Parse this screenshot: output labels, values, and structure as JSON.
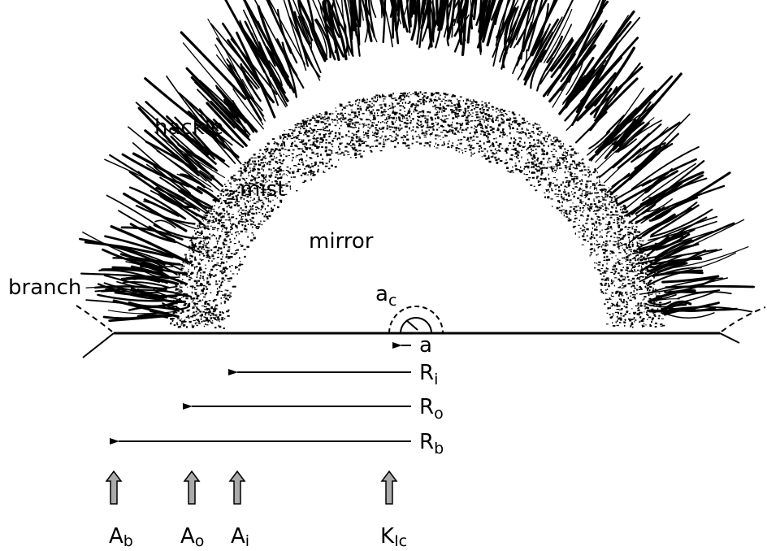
{
  "zones": {
    "hackle": "hackle",
    "mist": "mist",
    "mirror": "mirror",
    "branch": "branch"
  },
  "flaw": {
    "critical": {
      "main": "a",
      "sub": "c"
    },
    "size": "a"
  },
  "radii": [
    {
      "main": "R",
      "sub": "i"
    },
    {
      "main": "R",
      "sub": "o"
    },
    {
      "main": "R",
      "sub": "b"
    }
  ],
  "constants": [
    {
      "main": "A",
      "sub": "b"
    },
    {
      "main": "A",
      "sub": "o"
    },
    {
      "main": "A",
      "sub": "i"
    },
    {
      "main": "K",
      "sub": "Ic"
    }
  ]
}
